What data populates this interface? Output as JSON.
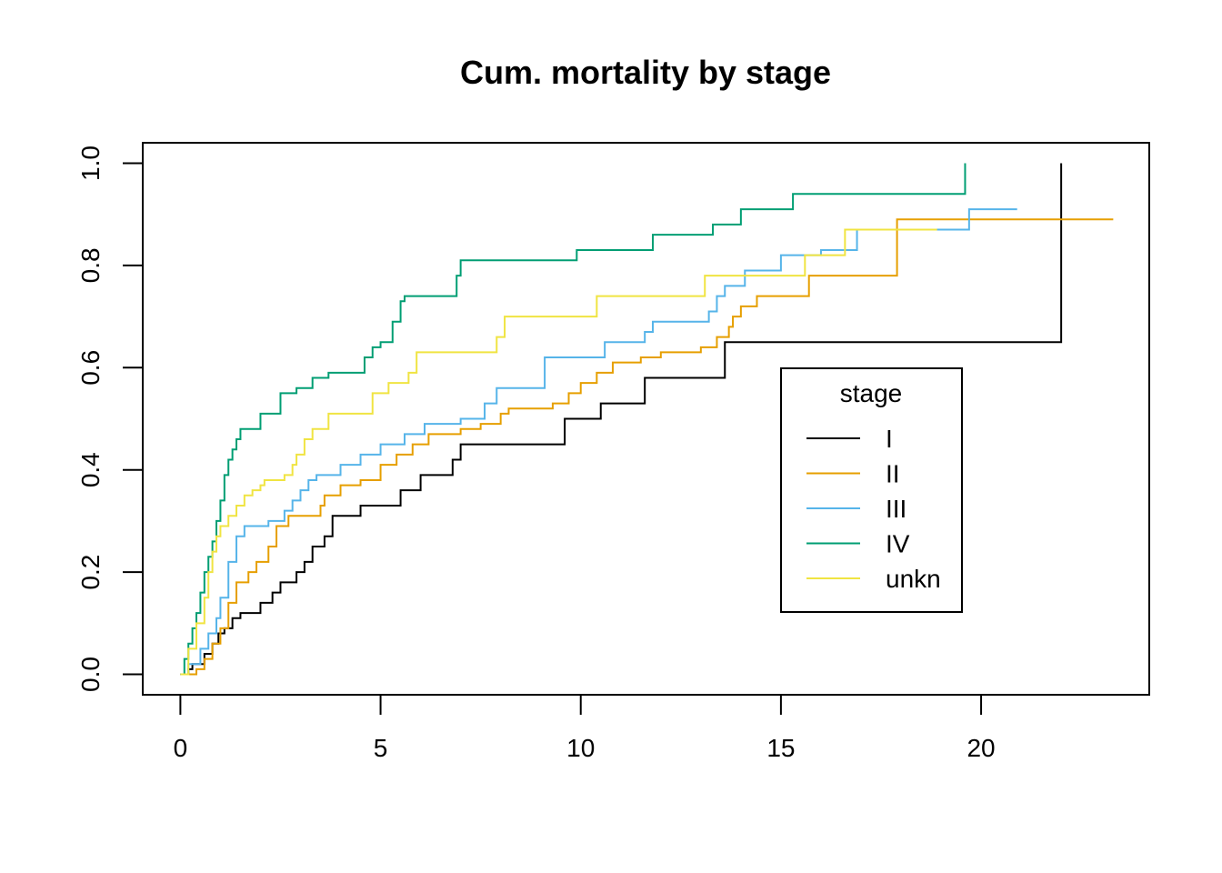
{
  "chart_data": {
    "type": "line",
    "title": "Cum. mortality by stage",
    "xlabel": "",
    "ylabel": "",
    "xlim": [
      -0.94,
      24.2
    ],
    "ylim": [
      -0.04,
      1.04
    ],
    "x_ticks": [
      "0",
      "5",
      "10",
      "15",
      "20"
    ],
    "y_ticks": [
      "0.0",
      "0.2",
      "0.4",
      "0.6",
      "0.8",
      "1.0"
    ],
    "grid": false,
    "step": true,
    "legend": {
      "title": "stage",
      "position": "right"
    },
    "series": [
      {
        "name": "I",
        "color": "#000000",
        "points": [
          [
            0,
            0
          ],
          [
            0.2,
            0.01
          ],
          [
            0.3,
            0.02
          ],
          [
            0.6,
            0.04
          ],
          [
            0.8,
            0.06
          ],
          [
            0.95,
            0.08
          ],
          [
            1.1,
            0.09
          ],
          [
            1.3,
            0.11
          ],
          [
            1.5,
            0.12
          ],
          [
            2.0,
            0.14
          ],
          [
            2.3,
            0.16
          ],
          [
            2.5,
            0.18
          ],
          [
            2.9,
            0.2
          ],
          [
            3.1,
            0.22
          ],
          [
            3.3,
            0.25
          ],
          [
            3.6,
            0.27
          ],
          [
            3.8,
            0.31
          ],
          [
            4.5,
            0.33
          ],
          [
            5.5,
            0.36
          ],
          [
            6.0,
            0.39
          ],
          [
            6.8,
            0.42
          ],
          [
            7.0,
            0.45
          ],
          [
            9.6,
            0.5
          ],
          [
            10.5,
            0.53
          ],
          [
            11.6,
            0.58
          ],
          [
            13.6,
            0.65
          ],
          [
            22.0,
            1.0
          ]
        ]
      },
      {
        "name": "II",
        "color": "#E69F00",
        "points": [
          [
            0,
            0
          ],
          [
            0.4,
            0.01
          ],
          [
            0.6,
            0.03
          ],
          [
            0.8,
            0.06
          ],
          [
            1.0,
            0.09
          ],
          [
            1.2,
            0.14
          ],
          [
            1.4,
            0.18
          ],
          [
            1.7,
            0.2
          ],
          [
            1.9,
            0.22
          ],
          [
            2.2,
            0.25
          ],
          [
            2.4,
            0.29
          ],
          [
            2.7,
            0.31
          ],
          [
            3.5,
            0.33
          ],
          [
            3.6,
            0.35
          ],
          [
            4.0,
            0.37
          ],
          [
            4.5,
            0.38
          ],
          [
            5.0,
            0.41
          ],
          [
            5.4,
            0.43
          ],
          [
            5.8,
            0.45
          ],
          [
            6.2,
            0.47
          ],
          [
            7.0,
            0.48
          ],
          [
            7.5,
            0.49
          ],
          [
            8.0,
            0.51
          ],
          [
            8.2,
            0.52
          ],
          [
            9.3,
            0.53
          ],
          [
            9.7,
            0.55
          ],
          [
            10.0,
            0.57
          ],
          [
            10.4,
            0.59
          ],
          [
            10.8,
            0.61
          ],
          [
            11.5,
            0.62
          ],
          [
            12.0,
            0.63
          ],
          [
            13.0,
            0.64
          ],
          [
            13.4,
            0.66
          ],
          [
            13.7,
            0.68
          ],
          [
            13.8,
            0.7
          ],
          [
            14.0,
            0.72
          ],
          [
            14.4,
            0.74
          ],
          [
            15.7,
            0.78
          ],
          [
            17.9,
            0.89
          ],
          [
            23.3,
            0.89
          ]
        ]
      },
      {
        "name": "III",
        "color": "#56B4E9",
        "points": [
          [
            0,
            0
          ],
          [
            0.2,
            0.02
          ],
          [
            0.5,
            0.05
          ],
          [
            0.7,
            0.08
          ],
          [
            0.9,
            0.11
          ],
          [
            1.0,
            0.15
          ],
          [
            1.2,
            0.22
          ],
          [
            1.4,
            0.27
          ],
          [
            1.6,
            0.29
          ],
          [
            2.2,
            0.3
          ],
          [
            2.6,
            0.32
          ],
          [
            2.8,
            0.34
          ],
          [
            3.0,
            0.36
          ],
          [
            3.2,
            0.38
          ],
          [
            3.4,
            0.39
          ],
          [
            4.0,
            0.41
          ],
          [
            4.5,
            0.43
          ],
          [
            5.0,
            0.45
          ],
          [
            5.6,
            0.47
          ],
          [
            6.1,
            0.49
          ],
          [
            7.0,
            0.5
          ],
          [
            7.6,
            0.53
          ],
          [
            7.9,
            0.56
          ],
          [
            9.1,
            0.62
          ],
          [
            10.6,
            0.65
          ],
          [
            11.6,
            0.67
          ],
          [
            11.8,
            0.69
          ],
          [
            13.2,
            0.71
          ],
          [
            13.4,
            0.74
          ],
          [
            13.6,
            0.76
          ],
          [
            14.1,
            0.79
          ],
          [
            15.0,
            0.82
          ],
          [
            16.0,
            0.83
          ],
          [
            16.9,
            0.87
          ],
          [
            19.7,
            0.91
          ],
          [
            20.9,
            0.91
          ]
        ]
      },
      {
        "name": "IV",
        "color": "#009E73",
        "points": [
          [
            0,
            0
          ],
          [
            0.1,
            0.03
          ],
          [
            0.2,
            0.06
          ],
          [
            0.3,
            0.09
          ],
          [
            0.4,
            0.12
          ],
          [
            0.5,
            0.16
          ],
          [
            0.6,
            0.2
          ],
          [
            0.7,
            0.23
          ],
          [
            0.8,
            0.26
          ],
          [
            0.9,
            0.3
          ],
          [
            1.0,
            0.34
          ],
          [
            1.1,
            0.39
          ],
          [
            1.2,
            0.42
          ],
          [
            1.3,
            0.44
          ],
          [
            1.4,
            0.46
          ],
          [
            1.5,
            0.48
          ],
          [
            2.0,
            0.51
          ],
          [
            2.5,
            0.55
          ],
          [
            2.9,
            0.56
          ],
          [
            3.3,
            0.58
          ],
          [
            3.7,
            0.59
          ],
          [
            4.6,
            0.62
          ],
          [
            4.8,
            0.64
          ],
          [
            5.0,
            0.65
          ],
          [
            5.3,
            0.69
          ],
          [
            5.5,
            0.73
          ],
          [
            5.6,
            0.74
          ],
          [
            6.9,
            0.78
          ],
          [
            7.0,
            0.81
          ],
          [
            9.9,
            0.83
          ],
          [
            11.8,
            0.86
          ],
          [
            13.3,
            0.88
          ],
          [
            14.0,
            0.91
          ],
          [
            15.3,
            0.94
          ],
          [
            19.6,
            1.0
          ]
        ]
      },
      {
        "name": "unkn",
        "color": "#F0E442",
        "points": [
          [
            0,
            0
          ],
          [
            0.2,
            0.05
          ],
          [
            0.4,
            0.1
          ],
          [
            0.6,
            0.15
          ],
          [
            0.7,
            0.2
          ],
          [
            0.8,
            0.24
          ],
          [
            0.9,
            0.27
          ],
          [
            1.0,
            0.29
          ],
          [
            1.2,
            0.31
          ],
          [
            1.4,
            0.33
          ],
          [
            1.6,
            0.35
          ],
          [
            1.8,
            0.36
          ],
          [
            2.0,
            0.37
          ],
          [
            2.1,
            0.38
          ],
          [
            2.6,
            0.39
          ],
          [
            2.8,
            0.41
          ],
          [
            2.9,
            0.43
          ],
          [
            3.1,
            0.46
          ],
          [
            3.3,
            0.48
          ],
          [
            3.7,
            0.51
          ],
          [
            4.8,
            0.55
          ],
          [
            5.2,
            0.57
          ],
          [
            5.7,
            0.59
          ],
          [
            5.9,
            0.63
          ],
          [
            7.9,
            0.66
          ],
          [
            8.1,
            0.7
          ],
          [
            10.4,
            0.74
          ],
          [
            13.1,
            0.78
          ],
          [
            15.6,
            0.82
          ],
          [
            16.6,
            0.87
          ],
          [
            18.9,
            0.87
          ]
        ]
      }
    ]
  }
}
